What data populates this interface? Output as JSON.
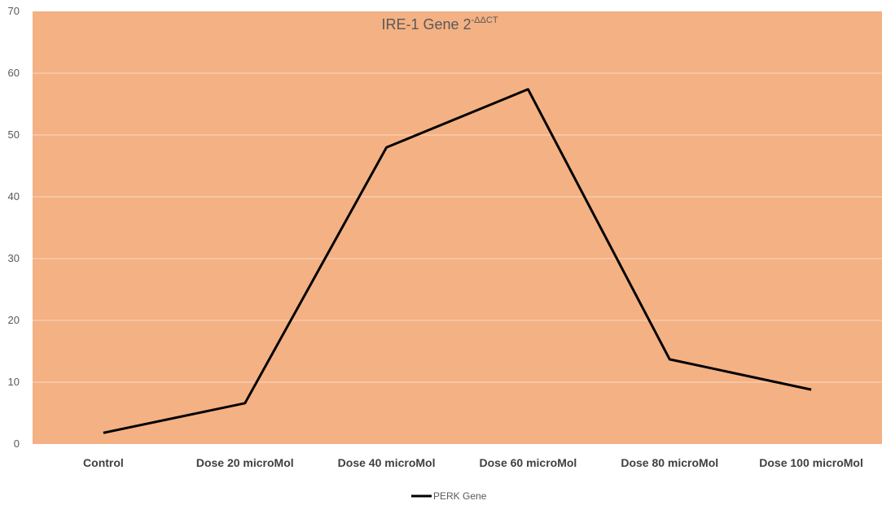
{
  "colors": {
    "plot_background": "#F4B183",
    "gridline": "#F8D9C4",
    "series_line": "#000000"
  },
  "chart_data": {
    "type": "line",
    "title": "IRE-1 Gene 2",
    "title_superscript": "-ΔΔCT",
    "xlabel": "",
    "ylabel": "",
    "categories": [
      "Control",
      "Dose 20 microMol",
      "Dose 40 microMol",
      "Dose 60 microMol",
      "Dose 80 microMol",
      "Dose 100 microMol"
    ],
    "series": [
      {
        "name": "PERK Gene",
        "values": [
          1.8,
          6.6,
          48.0,
          57.4,
          13.7,
          8.8
        ]
      }
    ],
    "ylim": [
      0,
      70
    ],
    "yticks": [
      0,
      10,
      20,
      30,
      40,
      50,
      60,
      70
    ],
    "grid": true,
    "legend": "bottom"
  }
}
